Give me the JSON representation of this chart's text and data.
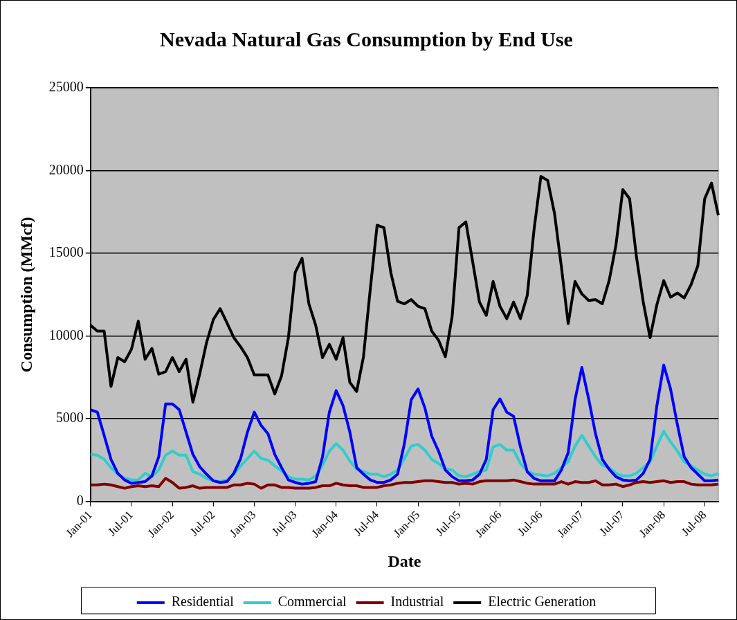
{
  "chart_data": {
    "type": "line",
    "title": "Nevada Natural Gas Consumption by End Use",
    "xlabel": "Date",
    "ylabel": "Consumption (MMcf)",
    "categories": [
      "Jan-01",
      null,
      null,
      null,
      null,
      null,
      "Jul-01",
      null,
      null,
      null,
      null,
      null,
      "Jan-02",
      null,
      null,
      null,
      null,
      null,
      "Jul-02",
      null,
      null,
      null,
      null,
      null,
      "Jan-03",
      null,
      null,
      null,
      null,
      null,
      "Jul-03",
      null,
      null,
      null,
      null,
      null,
      "Jan-04",
      null,
      null,
      null,
      null,
      null,
      "Jul-04",
      null,
      null,
      null,
      null,
      null,
      "Jan-05",
      null,
      null,
      null,
      null,
      null,
      "Jul-05",
      null,
      null,
      null,
      null,
      null,
      "Jan-06",
      null,
      null,
      null,
      null,
      null,
      "Jul-06",
      null,
      null,
      null,
      null,
      null,
      "Jan-07",
      null,
      null,
      null,
      null,
      null,
      "Jul-07",
      null,
      null,
      null,
      null,
      null,
      "Jan-08",
      null,
      null,
      null,
      null,
      null,
      "Jul-08",
      null,
      null
    ],
    "series": [
      {
        "name": "Residential",
        "color": "#0000ff",
        "values": [
          5550,
          5400,
          4000,
          2550,
          1700,
          1300,
          1100,
          1150,
          1200,
          1550,
          2700,
          5900,
          5900,
          5550,
          4200,
          2850,
          2100,
          1650,
          1250,
          1150,
          1200,
          1700,
          2600,
          4200,
          5400,
          4600,
          4100,
          2850,
          2050,
          1300,
          1150,
          1050,
          1100,
          1200,
          2700,
          5400,
          6700,
          5800,
          4200,
          2050,
          1650,
          1300,
          1150,
          1150,
          1300,
          1650,
          3500,
          6150,
          6800,
          5650,
          3950,
          3050,
          1900,
          1500,
          1250,
          1250,
          1300,
          1650,
          2550,
          5550,
          6200,
          5400,
          5150,
          3300,
          1800,
          1400,
          1250,
          1250,
          1250,
          1900,
          2950,
          6150,
          8100,
          6200,
          4100,
          2550,
          1950,
          1500,
          1300,
          1250,
          1300,
          1700,
          2550,
          5800,
          8250,
          6800,
          4650,
          2700,
          2050,
          1650,
          1250,
          1250,
          1300
        ]
      },
      {
        "name": "Commercial",
        "color": "#33cccc",
        "values": [
          2850,
          2800,
          2550,
          2050,
          1650,
          1400,
          1300,
          1300,
          1700,
          1500,
          1900,
          2800,
          3050,
          2800,
          2800,
          1800,
          1650,
          1400,
          1250,
          1200,
          1300,
          1650,
          2150,
          2600,
          3050,
          2600,
          2500,
          2150,
          1850,
          1500,
          1350,
          1350,
          1300,
          1550,
          2200,
          3050,
          3500,
          3100,
          2450,
          1950,
          1800,
          1650,
          1650,
          1500,
          1650,
          1900,
          2600,
          3350,
          3450,
          3100,
          2550,
          2300,
          1950,
          1900,
          1550,
          1500,
          1650,
          1800,
          1900,
          3300,
          3450,
          3100,
          3100,
          2300,
          1850,
          1650,
          1600,
          1550,
          1700,
          2050,
          2400,
          3350,
          4000,
          3350,
          2700,
          2200,
          2050,
          1700,
          1550,
          1550,
          1700,
          2050,
          2400,
          3350,
          4250,
          3600,
          3050,
          2400,
          2150,
          1900,
          1650,
          1550,
          1700
        ]
      },
      {
        "name": "Industrial",
        "color": "#800000",
        "values": [
          1000,
          1000,
          1050,
          1000,
          900,
          800,
          900,
          950,
          900,
          950,
          900,
          1400,
          1150,
          800,
          850,
          950,
          800,
          850,
          850,
          850,
          850,
          1000,
          1000,
          1100,
          1050,
          800,
          1000,
          1000,
          850,
          850,
          800,
          800,
          800,
          850,
          950,
          950,
          1100,
          1000,
          950,
          950,
          850,
          850,
          850,
          950,
          1000,
          1100,
          1150,
          1150,
          1200,
          1250,
          1250,
          1200,
          1150,
          1150,
          1050,
          1100,
          1050,
          1200,
          1250,
          1250,
          1250,
          1250,
          1300,
          1200,
          1100,
          1050,
          1050,
          1050,
          1050,
          1200,
          1050,
          1200,
          1150,
          1150,
          1250,
          1000,
          1000,
          1050,
          900,
          1000,
          1150,
          1200,
          1150,
          1200,
          1250,
          1150,
          1200,
          1200,
          1050,
          1000,
          1000,
          1000,
          1050
        ]
      },
      {
        "name": "Electric Generation",
        "color": "#000000",
        "values": [
          10650,
          10300,
          10300,
          6950,
          8700,
          8450,
          9200,
          10900,
          8600,
          9250,
          7700,
          7850,
          8700,
          7850,
          8600,
          6000,
          7700,
          9600,
          11000,
          11650,
          10800,
          9900,
          9350,
          8700,
          7650,
          7650,
          7650,
          6500,
          7600,
          9900,
          13850,
          14700,
          11950,
          10650,
          8700,
          9500,
          8600,
          9900,
          7200,
          6650,
          8750,
          12850,
          16700,
          16550,
          13850,
          12100,
          11950,
          12200,
          11800,
          11650,
          10300,
          9750,
          8750,
          11200,
          16550,
          16900,
          14500,
          12050,
          11250,
          13300,
          11800,
          11050,
          12050,
          11050,
          12450,
          16450,
          19650,
          19400,
          17400,
          14200,
          10750,
          13300,
          12550,
          12150,
          12200,
          11950,
          13350,
          15500,
          18850,
          18300,
          14800,
          12050,
          9900,
          11900,
          13350,
          12350,
          12600,
          12300,
          13100,
          14250,
          18300,
          19250,
          17300
        ]
      }
    ],
    "ylim": [
      0,
      25000
    ],
    "yticks": [
      0,
      5000,
      10000,
      15000,
      20000,
      25000
    ],
    "grid": "y",
    "legend": "bottom",
    "marker": "none",
    "line_style": "solid"
  }
}
